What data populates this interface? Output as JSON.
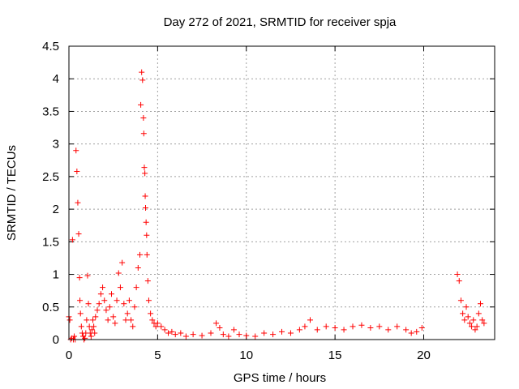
{
  "chart_data": {
    "type": "scatter",
    "title": "Day 272 of 2021, SRMTID for receiver spja",
    "xlabel": "GPS time / hours",
    "ylabel": "SRMTID / TECUs",
    "xlim": [
      0,
      24
    ],
    "ylim": [
      0,
      4.5
    ],
    "xticks": [
      0,
      5,
      10,
      15,
      20
    ],
    "xtick_labels": [
      "0",
      "5",
      "10",
      "15",
      "20"
    ],
    "yticks": [
      0,
      0.5,
      1,
      1.5,
      2,
      2.5,
      3,
      3.5,
      4,
      4.5
    ],
    "ytick_labels": [
      "0",
      "0.5",
      "1",
      "1.5",
      "2",
      "2.5",
      "3",
      "3.5",
      "4",
      "4.5"
    ],
    "grid": true,
    "marker": "plus",
    "series": [
      {
        "color": "#ff0000",
        "x": [
          0.0,
          0.05,
          0.1,
          0.15,
          0.2,
          0.25,
          0.3,
          0.35,
          0.4,
          0.45,
          0.5,
          0.55,
          0.6,
          0.62,
          0.65,
          0.7,
          0.75,
          0.8,
          0.85,
          0.9,
          0.95,
          1.0,
          1.05,
          1.1,
          1.15,
          1.2,
          1.25,
          1.3,
          1.35,
          1.4,
          1.45,
          1.5,
          1.6,
          1.7,
          1.8,
          1.9,
          2.0,
          2.1,
          2.2,
          2.3,
          2.4,
          2.5,
          2.6,
          2.7,
          2.8,
          2.9,
          3.0,
          3.1,
          3.2,
          3.3,
          3.4,
          3.5,
          3.6,
          3.7,
          3.8,
          3.9,
          4.0,
          4.05,
          4.1,
          4.15,
          4.2,
          4.22,
          4.25,
          4.28,
          4.3,
          4.32,
          4.35,
          4.38,
          4.4,
          4.45,
          4.5,
          4.6,
          4.7,
          4.8,
          4.9,
          5.0,
          5.2,
          5.4,
          5.6,
          5.8,
          6.0,
          6.3,
          6.6,
          7.0,
          7.5,
          8.0,
          8.3,
          8.5,
          8.7,
          9.0,
          9.3,
          9.6,
          10.0,
          10.5,
          11.0,
          11.5,
          12.0,
          12.5,
          13.0,
          13.3,
          13.6,
          14.0,
          14.5,
          15.0,
          15.5,
          16.0,
          16.5,
          17.0,
          17.5,
          18.0,
          18.5,
          19.0,
          19.3,
          19.6,
          19.9,
          21.9,
          22.0,
          22.1,
          22.2,
          22.3,
          22.4,
          22.5,
          22.6,
          22.7,
          22.8,
          22.9,
          23.0,
          23.1,
          23.2,
          23.3,
          23.4
        ],
        "y": [
          0.35,
          0.3,
          0.0,
          0.02,
          1.53,
          0.0,
          0.05,
          0.0,
          2.9,
          2.58,
          2.1,
          1.62,
          0.95,
          0.6,
          0.4,
          0.2,
          0.1,
          0.05,
          0.0,
          0.02,
          0.1,
          0.3,
          0.98,
          0.55,
          0.2,
          0.1,
          0.05,
          0.15,
          0.3,
          0.2,
          0.1,
          0.35,
          0.45,
          0.55,
          0.7,
          0.8,
          0.6,
          0.45,
          0.3,
          0.5,
          0.7,
          0.35,
          0.25,
          0.6,
          1.02,
          0.8,
          1.18,
          0.55,
          0.3,
          0.4,
          0.6,
          0.3,
          0.2,
          0.5,
          0.8,
          1.1,
          1.3,
          3.6,
          4.1,
          3.98,
          3.4,
          3.16,
          2.64,
          2.55,
          2.2,
          2.02,
          1.8,
          1.6,
          1.3,
          0.9,
          0.6,
          0.4,
          0.3,
          0.25,
          0.2,
          0.25,
          0.2,
          0.15,
          0.1,
          0.12,
          0.08,
          0.1,
          0.05,
          0.08,
          0.06,
          0.1,
          0.25,
          0.18,
          0.08,
          0.05,
          0.15,
          0.08,
          0.06,
          0.05,
          0.1,
          0.08,
          0.12,
          0.1,
          0.15,
          0.2,
          0.3,
          0.15,
          0.2,
          0.18,
          0.15,
          0.2,
          0.22,
          0.18,
          0.2,
          0.15,
          0.2,
          0.15,
          0.1,
          0.12,
          0.18,
          1.0,
          0.9,
          0.6,
          0.4,
          0.3,
          0.5,
          0.35,
          0.25,
          0.2,
          0.3,
          0.15,
          0.2,
          0.4,
          0.55,
          0.3,
          0.25
        ]
      }
    ]
  }
}
